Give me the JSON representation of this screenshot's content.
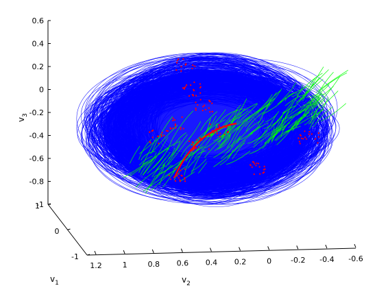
{
  "chart_data": {
    "type": "line",
    "projection": "3d",
    "title": "",
    "xlabel": "v",
    "xlabel_sub": "1",
    "ylabel": "v",
    "ylabel_sub": "2",
    "zlabel": "v",
    "zlabel_sub": "3",
    "x_axis": {
      "name": "v1",
      "range": [
        -1,
        1
      ],
      "ticks": [
        {
          "value": 1,
          "label": "1"
        },
        {
          "value": 0,
          "label": "0"
        },
        {
          "value": -1,
          "label": "-1"
        }
      ]
    },
    "y_axis": {
      "name": "v2",
      "range": [
        -0.6,
        1.2
      ],
      "ticks": [
        {
          "value": 1.2,
          "label": "1.2"
        },
        {
          "value": 1.0,
          "label": "1"
        },
        {
          "value": 0.8,
          "label": "0.8"
        },
        {
          "value": 0.6,
          "label": "0.6"
        },
        {
          "value": 0.4,
          "label": "0.4"
        },
        {
          "value": 0.2,
          "label": "0.2"
        },
        {
          "value": 0.0,
          "label": "0"
        },
        {
          "value": -0.2,
          "label": "-0.2"
        },
        {
          "value": -0.4,
          "label": "-0.4"
        },
        {
          "value": -0.6,
          "label": "-0.6"
        }
      ]
    },
    "z_axis": {
      "name": "v3",
      "range": [
        -1,
        0.6
      ],
      "ticks": [
        {
          "value": 0.6,
          "label": "0.6"
        },
        {
          "value": 0.4,
          "label": "0.4"
        },
        {
          "value": 0.2,
          "label": "0.2"
        },
        {
          "value": 0.0,
          "label": "0"
        },
        {
          "value": -0.2,
          "label": "-0.2"
        },
        {
          "value": -0.4,
          "label": "-0.4"
        },
        {
          "value": -0.6,
          "label": "-0.6"
        },
        {
          "value": -0.8,
          "label": "-0.8"
        },
        {
          "value": -1.0,
          "label": "-1"
        }
      ]
    },
    "grid": false,
    "legend": "none",
    "series": [
      {
        "color": "#0000ff",
        "render": "dense-trajectory-bundle",
        "loops": 420,
        "center": [
          0.0,
          0.3,
          -0.3
        ],
        "radius": [
          0.75,
          0.45,
          0.4
        ]
      },
      {
        "color": "#00ff00",
        "render": "dense-trajectory-bundle",
        "loops": 180,
        "x": [
          0.6,
          0.2,
          -0.1,
          -0.3,
          -0.6
        ],
        "y": [
          0.7,
          0.45,
          0.25,
          0.05,
          -0.2
        ],
        "z": [
          -0.35,
          -0.45,
          -0.45,
          -0.35,
          -0.3
        ]
      },
      {
        "color": "#ff0000",
        "render": "scattered-trajectory-points",
        "points": 160,
        "x": [
          0.3,
          0.1,
          0.0,
          -0.1,
          -0.3,
          -0.5,
          0.2,
          0.0
        ],
        "y": [
          0.5,
          0.45,
          0.35,
          0.25,
          0.2,
          0.05,
          0.6,
          0.15
        ],
        "z": [
          0.15,
          0.0,
          -0.15,
          -0.3,
          -0.45,
          -0.6,
          -0.35,
          -0.75
        ]
      }
    ]
  }
}
